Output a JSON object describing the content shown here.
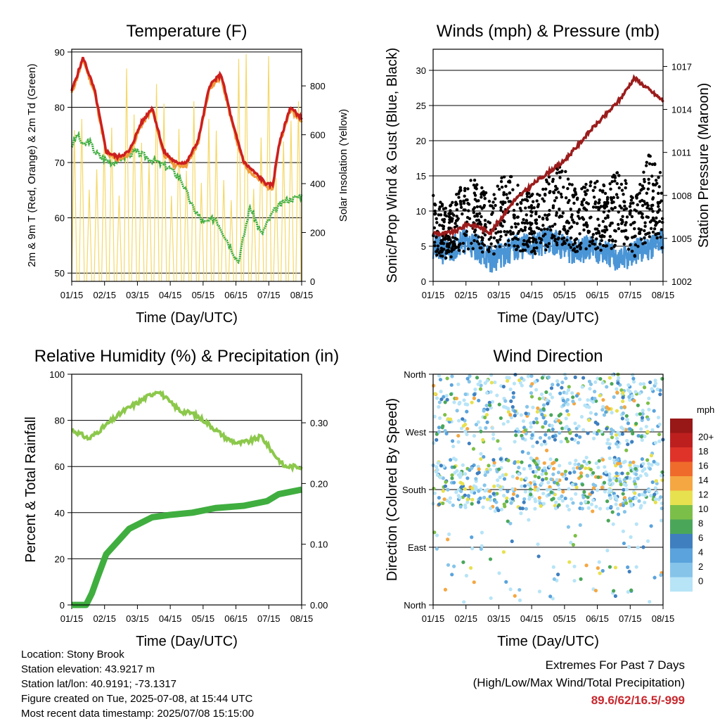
{
  "colors": {
    "temp_2m": "#cc1f1f",
    "temp_9m": "#f29a3a",
    "dewpoint": "#3fae3f",
    "solar": "#f5d866",
    "wind": "#4a95d6",
    "gust": "#000000",
    "pressure": "#9b1c1c",
    "rh": "#8cc84b",
    "precip": "#3fae3f",
    "highlight": "#c8282e",
    "speed_scale": [
      "#b7e4f7",
      "#86c4ea",
      "#5aa3dc",
      "#3f7fbf",
      "#4aa75a",
      "#7cbf48",
      "#e7e14f",
      "#f5a742",
      "#ef6b2c",
      "#df3329",
      "#bd1f1f",
      "#981717"
    ]
  },
  "x_ticks": [
    "01/15",
    "02/15",
    "03/15",
    "04/15",
    "05/15",
    "06/15",
    "07/15",
    "08/15"
  ],
  "chart_data": [
    {
      "id": "temperature",
      "type": "line",
      "title": "Temperature (F)",
      "xlabel": "Time (Day/UTC)",
      "ylabel": "2m & 9m T (Red, Orange) & 2m Td (Green)",
      "y2label": "Solar Insolation (Yellow)",
      "ylim": [
        48.5,
        90.5
      ],
      "y_ticks": [
        50,
        60,
        70,
        80,
        90
      ],
      "y2lim": [
        0,
        950
      ],
      "y2_ticks": [
        0,
        200,
        400,
        600,
        800
      ],
      "series": [
        {
          "key": "temp_2m",
          "x": [
            0,
            0.4,
            0.8,
            1.2,
            1.6,
            2,
            2.4,
            2.8,
            3.2,
            3.6,
            4,
            4.4,
            4.8,
            5.2,
            5.6,
            6,
            6.4,
            6.8,
            7,
            7.2,
            7.6,
            8
          ],
          "values": [
            83,
            89,
            83,
            72,
            71,
            72,
            77,
            80,
            72,
            70,
            70,
            74,
            84,
            86,
            77,
            70,
            68,
            66,
            66,
            73,
            80,
            78
          ]
        },
        {
          "key": "dewpoint",
          "x": [
            0,
            0.2,
            0.4,
            0.6,
            0.8,
            1,
            1.4,
            1.8,
            2.2,
            2.6,
            3,
            3.4,
            3.8,
            4.2,
            4.6,
            5,
            5.4,
            5.8,
            6.2,
            6.6,
            7,
            7.4,
            8
          ],
          "values": [
            73,
            75,
            73,
            74,
            72,
            71,
            70,
            71,
            72,
            71,
            70,
            69,
            67,
            62,
            59,
            60,
            56,
            52,
            62,
            57,
            61,
            63,
            64
          ]
        },
        {
          "key": "solar",
          "x": [
            0,
            0.2,
            0.4,
            1,
            1.8,
            2.6,
            3.4,
            4.2,
            5,
            5.8,
            6.6,
            7.4,
            8
          ],
          "values": [
            0,
            700,
            900,
            0,
            900,
            0,
            900,
            0,
            900,
            0,
            900,
            0,
            900
          ]
        }
      ]
    },
    {
      "id": "winds",
      "type": "line",
      "title": "Winds (mph) & Pressure (mb)",
      "xlabel": "Time (Day/UTC)",
      "ylabel": "Sonic/Prop Wind & Gust (Blue, Black)",
      "y2label": "Station Pressure (Maroon)",
      "ylim": [
        0,
        33
      ],
      "y_ticks": [
        0,
        5,
        10,
        15,
        20,
        25,
        30
      ],
      "y2lim": [
        1002,
        1018.2
      ],
      "y2_ticks": [
        1002,
        1005,
        1008,
        1011,
        1014,
        1017
      ],
      "series": [
        {
          "key": "pressure",
          "x": [
            0,
            0.3,
            0.8,
            1.2,
            1.6,
            2,
            2.4,
            2.8,
            3.2,
            3.6,
            4,
            4.5,
            5,
            5.5,
            6,
            6.5,
            7,
            7.5,
            8
          ],
          "values": [
            1005.4,
            1005.3,
            1005.5,
            1006,
            1005.8,
            1005.4,
            1006.5,
            1007.6,
            1008.3,
            1009,
            1009.6,
            1010.3,
            1011.4,
            1012.6,
            1013.6,
            1014.7,
            1016.2,
            1015.4,
            1014.6
          ]
        },
        {
          "key": "wind",
          "x": [
            0,
            0.5,
            1,
            1.5,
            2,
            2.5,
            3,
            3.5,
            4,
            4.5,
            5,
            5.5,
            6,
            6.5,
            7,
            7.5,
            8
          ],
          "values": [
            5,
            4,
            6,
            5,
            3,
            4,
            5,
            5,
            6,
            5,
            4,
            5,
            4,
            3,
            4,
            5,
            6
          ]
        },
        {
          "key": "gust",
          "x": [
            0,
            0.5,
            1,
            1.5,
            2,
            2.5,
            3,
            3.5,
            4,
            4.5,
            5,
            5.5,
            6,
            6.5,
            7,
            7.5,
            8
          ],
          "values": [
            11,
            9,
            12,
            13,
            10,
            14,
            12,
            11,
            13,
            15,
            11,
            13,
            12,
            14,
            10,
            16,
            13
          ]
        }
      ]
    },
    {
      "id": "humidity",
      "type": "line",
      "title": "Relative Humidity (%) & Precipitation (in)",
      "xlabel": "Time (Day/UTC)",
      "ylabel": "Percent & Total Rainfall",
      "ylim": [
        0,
        100
      ],
      "y_ticks": [
        0,
        20,
        40,
        60,
        80,
        100
      ],
      "y2lim": [
        0,
        0.38
      ],
      "y2_ticks": [
        "0.00",
        "0.10",
        "0.20",
        "0.30"
      ],
      "series": [
        {
          "key": "rh",
          "x": [
            0,
            0.3,
            0.6,
            1,
            1.4,
            1.8,
            2.2,
            2.6,
            3,
            3.4,
            3.8,
            4.2,
            4.6,
            5,
            5.4,
            5.8,
            6.2,
            6.6,
            7,
            7.4,
            8
          ],
          "values": [
            76,
            74,
            72,
            76,
            80,
            84,
            87,
            90,
            93,
            88,
            84,
            83,
            80,
            76,
            72,
            70,
            71,
            73,
            66,
            60,
            60
          ]
        },
        {
          "key": "precip",
          "x": [
            0,
            0.5,
            0.7,
            0.9,
            1.2,
            2,
            2.8,
            3.4,
            4.2,
            5,
            6,
            6.8,
            7.2,
            8
          ],
          "values": [
            0,
            0,
            5,
            12,
            22,
            33,
            38,
            39,
            40,
            42,
            43,
            45,
            48,
            50
          ]
        }
      ]
    },
    {
      "id": "wind_direction",
      "type": "scatter",
      "title": "Wind Direction",
      "xlabel": "Time (Day/UTC)",
      "ylabel": "Direction (Colored By Speed)",
      "ylim": [
        0,
        360
      ],
      "y_ticks": [
        "North",
        "East",
        "South",
        "West",
        "North"
      ],
      "legend_title": "mph",
      "legend_labels": [
        "0",
        "2",
        "4",
        "6",
        "8",
        "10",
        "12",
        "14",
        "16",
        "18",
        "20+"
      ],
      "legend": "right"
    }
  ],
  "info": {
    "location": "Location: Stony Brook",
    "elevation": "Station elevation: 43.9217 m",
    "latlon": "Station lat/lon: 40.9191; -73.1317",
    "created": "Figure created on Tue, 2025-07-08, at 15:44 UTC",
    "recent": "Most recent data timestamp: 2025/07/08 15:15:00"
  },
  "extremes": {
    "title": "Extremes For Past 7 Days",
    "subtitle": "(High/Low/Max Wind/Total Precipitation)",
    "value": "89.6/62/16.5/-999"
  }
}
